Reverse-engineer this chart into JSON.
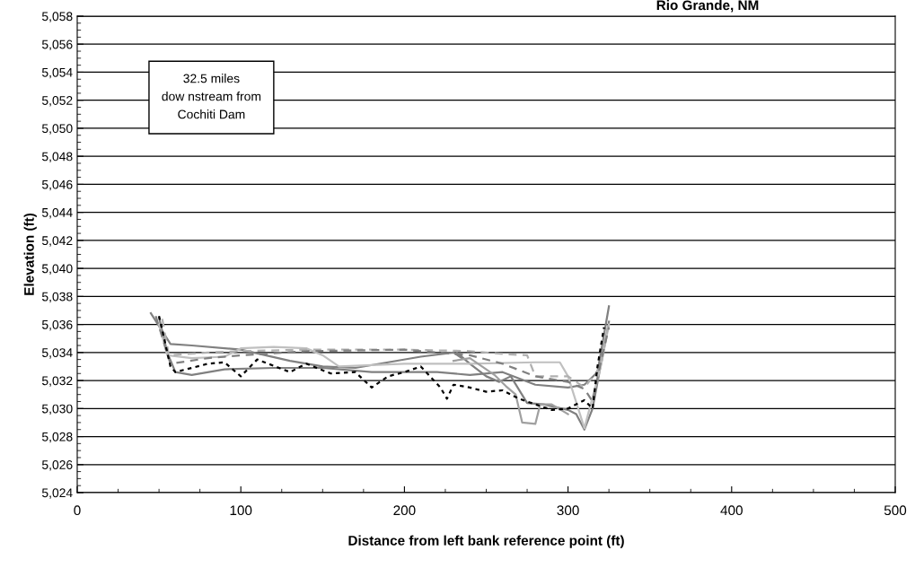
{
  "chart_data": {
    "type": "line",
    "title": "Rio Grande, NM",
    "xlabel": "Distance from left bank reference point (ft)",
    "ylabel": "Elevation (ft)",
    "annotations": [
      "32.5 miles\ndow nstream from\nCochiti Dam"
    ],
    "xlim": [
      0,
      500
    ],
    "xticks": [
      0,
      100,
      200,
      300,
      400,
      500
    ],
    "ylim": [
      5024,
      5058
    ],
    "yticks": [
      {
        "value": 5024,
        "label": "5,024"
      },
      {
        "value": 5026,
        "label": "5,026"
      },
      {
        "value": 5028,
        "label": "5,028"
      },
      {
        "value": 5030,
        "label": "5,030"
      },
      {
        "value": 5032,
        "label": "5,032"
      },
      {
        "value": 5034,
        "label": "5,034"
      },
      {
        "value": 5036,
        "label": "5,036"
      },
      {
        "value": 5038,
        "label": "5,038"
      },
      {
        "value": 5040,
        "label": "5,040"
      },
      {
        "value": 5042,
        "label": "5,042"
      },
      {
        "value": 5044,
        "label": "5,044"
      },
      {
        "value": 5046,
        "label": "5,046"
      },
      {
        "value": 5048,
        "label": "5,048"
      },
      {
        "value": 5050,
        "label": "5,050"
      },
      {
        "value": 5052,
        "label": "5,052"
      },
      {
        "value": 5054,
        "label": "5,054"
      },
      {
        "value": 5056,
        "label": "5,056"
      },
      {
        "value": 5058,
        "label": "5,058"
      }
    ],
    "grid": "y",
    "legend": false,
    "marker": "none",
    "series": [
      {
        "color": "#808080",
        "line_style": "solid",
        "x": [
          45,
          57,
          70,
          100,
          130,
          150,
          170,
          190,
          210,
          230,
          235
        ],
        "values": [
          5036.8,
          5034.6,
          5034.5,
          5034.2,
          5033.4,
          5033.0,
          5032.9,
          5033.3,
          5033.7,
          5034.0,
          5033.6
        ]
      },
      {
        "color": "#808080",
        "line_style": "solid",
        "x": [
          232,
          240,
          250,
          258,
          265,
          275,
          285,
          300,
          305,
          310,
          315,
          325
        ],
        "values": [
          5034.0,
          5033.2,
          5032.3,
          5031.9,
          5032.3,
          5030.4,
          5030.3,
          5029.9,
          5029.6,
          5028.5,
          5030.0,
          5036.2
        ]
      },
      {
        "color": "#808080",
        "line_style": "solid",
        "x": [
          50,
          55,
          60,
          70,
          90,
          120,
          150,
          180,
          220,
          240,
          260,
          280,
          300,
          310,
          318,
          325
        ],
        "values": [
          5036.5,
          5034.0,
          5032.6,
          5032.4,
          5032.8,
          5032.9,
          5032.9,
          5032.6,
          5032.6,
          5032.4,
          5032.6,
          5031.7,
          5031.5,
          5031.7,
          5032.6,
          5037.3
        ]
      },
      {
        "color": "#c0c0c0",
        "line_style": "solid",
        "x": [
          50,
          55,
          70,
          90,
          100,
          120,
          140,
          150,
          160,
          180,
          200,
          240,
          280,
          295,
          300,
          310,
          320,
          325
        ],
        "values": [
          5036.0,
          5033.8,
          5033.6,
          5033.7,
          5034.3,
          5034.4,
          5034.3,
          5033.8,
          5033.0,
          5033.1,
          5033.2,
          5033.2,
          5033.3,
          5033.3,
          5032.3,
          5028.6,
          5033.0,
          5036.0
        ]
      },
      {
        "color": "#b0b0b0",
        "line_style": "dashed",
        "x": [
          52,
          56,
          80,
          100,
          140,
          200,
          240,
          260,
          275,
          280,
          300,
          310,
          320,
          325
        ],
        "values": [
          5036.4,
          5033.8,
          5034.0,
          5034.1,
          5034.2,
          5034.2,
          5034.1,
          5033.9,
          5033.8,
          5032.3,
          5032.3,
          5031.5,
          5033.0,
          5036.2
        ]
      },
      {
        "color": "#808080",
        "line_style": "dashed",
        "x": [
          48,
          57,
          80,
          100,
          140,
          200,
          240,
          260,
          280,
          300,
          310,
          315,
          320,
          325
        ],
        "values": [
          5036.6,
          5033.2,
          5033.6,
          5033.8,
          5034.1,
          5034.2,
          5033.8,
          5033.2,
          5032.3,
          5031.9,
          5031.4,
          5030.5,
          5033.3,
          5035.8
        ]
      },
      {
        "color": "#a0a0a0",
        "line_style": "solid",
        "x": [
          230,
          240,
          255,
          262,
          268,
          272,
          280,
          283,
          290,
          300
        ],
        "values": [
          5033.4,
          5033.6,
          5032.4,
          5031.6,
          5031.0,
          5029.0,
          5028.9,
          5030.3,
          5030.3,
          5029.6
        ]
      },
      {
        "color": "#000000",
        "line_style": "dotted",
        "x": [
          50,
          57,
          60,
          70,
          80,
          90,
          100,
          110,
          130,
          140,
          155,
          170,
          180,
          190,
          200,
          210,
          222,
          226,
          230,
          240,
          250,
          260,
          270,
          280,
          290,
          300,
          310,
          315,
          318,
          322
        ],
        "values": [
          5036.6,
          5033.0,
          5032.6,
          5032.9,
          5033.2,
          5033.3,
          5032.3,
          5033.5,
          5032.6,
          5033.2,
          5032.5,
          5032.6,
          5031.5,
          5032.3,
          5032.6,
          5033.0,
          5031.5,
          5030.7,
          5031.7,
          5031.5,
          5031.2,
          5031.3,
          5030.7,
          5030.3,
          5029.9,
          5030.0,
          5030.6,
          5030.0,
          5033.0,
          5035.8
        ]
      }
    ]
  }
}
